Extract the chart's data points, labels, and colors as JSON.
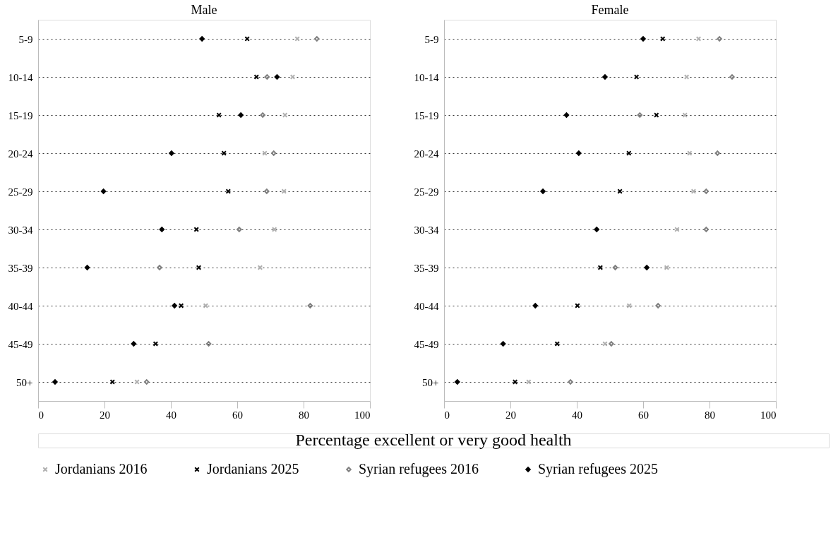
{
  "chart_data": [
    {
      "type": "scatter",
      "orientation": "horizontal",
      "title": "Male",
      "xlabel": "Percentage excellent or very good health",
      "categories": [
        "5-9",
        "10-14",
        "15-19",
        "20-24",
        "25-29",
        "30-34",
        "35-39",
        "40-44",
        "45-49",
        "50+"
      ],
      "xlim": [
        0,
        100
      ],
      "xticks": [
        0,
        20,
        40,
        60,
        80,
        100
      ],
      "grid": "y",
      "legend": "bottom",
      "series": [
        {
          "name": "Jordanians 2016",
          "color": "#b0b0b0",
          "marker": "cross",
          "values": [
            78.1,
            76.7,
            74.4,
            68.3,
            74.1,
            71.2,
            66.9,
            50.5,
            null,
            29.8
          ]
        },
        {
          "name": "Jordanians 2025",
          "color": "#000000",
          "marker": "cross",
          "values": [
            63,
            65.8,
            54.5,
            56,
            57.3,
            47.7,
            48.4,
            43.1,
            35.4,
            22.4
          ]
        },
        {
          "name": "Syrian refugees 2016",
          "color": "#808080",
          "marker": "diamond",
          "values": [
            84,
            69,
            67.7,
            71,
            68.9,
            60.6,
            36.6,
            82,
            51.4,
            32.7
          ]
        },
        {
          "name": "Syrian refugees 2025",
          "color": "#000000",
          "marker": "diamond",
          "values": [
            49.4,
            72,
            61.1,
            40.2,
            19.7,
            37.3,
            14.8,
            41.1,
            28.8,
            5.1
          ]
        }
      ]
    },
    {
      "type": "scatter",
      "orientation": "horizontal",
      "title": "Female",
      "categories": [
        "5-9",
        "10-14",
        "15-19",
        "20-24",
        "25-29",
        "30-34",
        "35-39",
        "40-44",
        "45-49",
        "50+"
      ],
      "xlim": [
        0,
        100
      ],
      "xticks": [
        0,
        20,
        40,
        60,
        80,
        100
      ],
      "grid": "y",
      "series": [
        {
          "color": "#b0b0b0",
          "marker": "cross",
          "values": [
            76.7,
            73.1,
            72.6,
            74,
            75.2,
            70.2,
            67.1,
            55.8,
            48.5,
            25.5
          ]
        },
        {
          "color": "#000000",
          "marker": "cross",
          "values": [
            65.9,
            58,
            64,
            55.7,
            53,
            null,
            47.1,
            40.2,
            34.1,
            21.4
          ]
        },
        {
          "color": "#808080",
          "marker": "diamond",
          "values": [
            83,
            86.8,
            59,
            82.4,
            79,
            79,
            51.6,
            64.5,
            50.4,
            38.1
          ]
        },
        {
          "color": "#000000",
          "marker": "diamond",
          "values": [
            60,
            48.5,
            36.9,
            40.6,
            29.8,
            46,
            61.1,
            27.5,
            17.8,
            4
          ]
        }
      ]
    }
  ]
}
